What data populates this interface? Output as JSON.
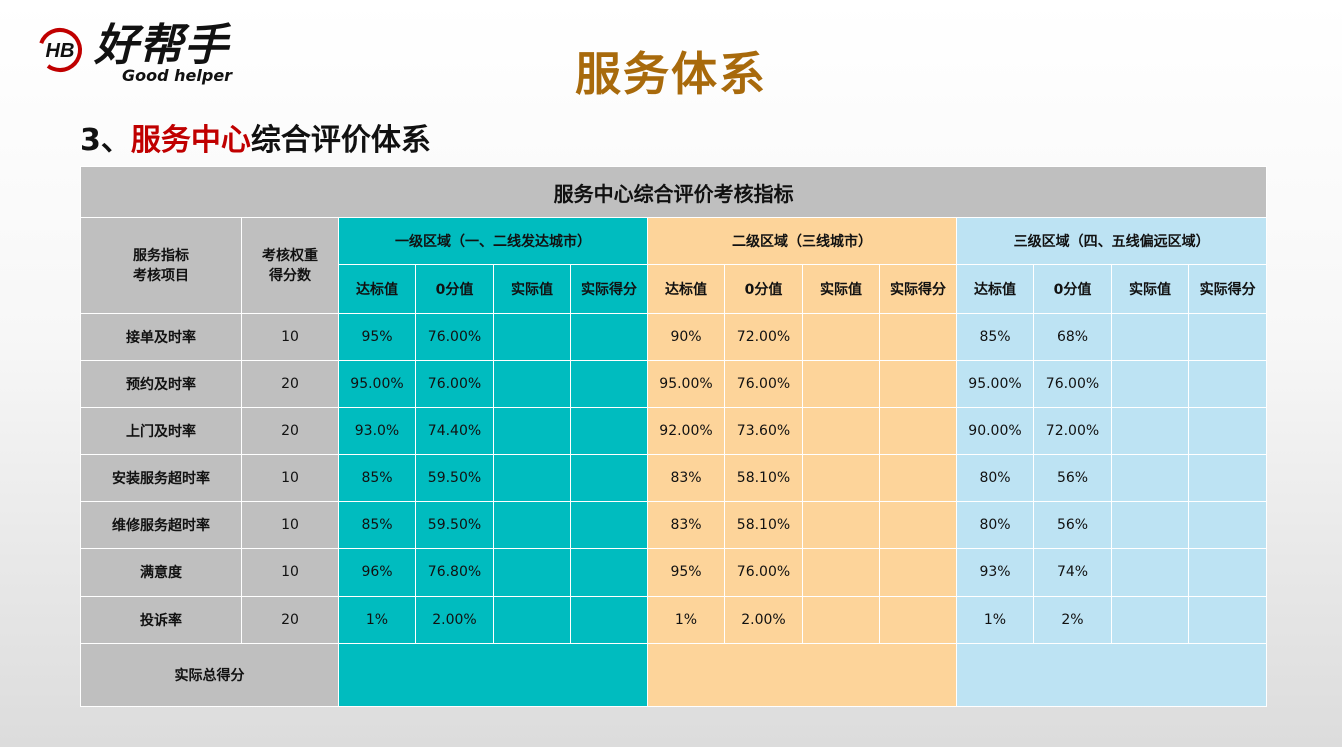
{
  "logo": {
    "mark": "HB",
    "name_cn": "好帮手",
    "name_en": "Good helper"
  },
  "page": {
    "title": "服务体系",
    "subtitle_prefix": "3、",
    "subtitle_red": "服务中心",
    "subtitle_rest": "综合评价体系"
  },
  "table": {
    "caption": "服务中心综合评价考核指标",
    "col_item": "服务指标\n考核项目",
    "col_weight": "考核权重\n得分数",
    "regions": [
      {
        "name": "一级区域（一、二线发达城市）",
        "color": "#00bcbf"
      },
      {
        "name": "二级区域（三线城市）",
        "color": "#fdd49a"
      },
      {
        "name": "三级区域（四、五线偏远区域）",
        "color": "#bde3f3"
      }
    ],
    "sub_headers": [
      "达标值",
      "0分值",
      "实际值",
      "实际得分"
    ],
    "rows": [
      {
        "item": "接单及时率",
        "weight": "10",
        "r1": [
          "95%",
          "76.00%",
          "",
          ""
        ],
        "r2": [
          "90%",
          "72.00%",
          "",
          ""
        ],
        "r3": [
          "85%",
          "68%",
          "",
          ""
        ]
      },
      {
        "item": "预约及时率",
        "weight": "20",
        "r1": [
          "95.00%",
          "76.00%",
          "",
          ""
        ],
        "r2": [
          "95.00%",
          "76.00%",
          "",
          ""
        ],
        "r3": [
          "95.00%",
          "76.00%",
          "",
          ""
        ]
      },
      {
        "item": "上门及时率",
        "weight": "20",
        "r1": [
          "93.0%",
          "74.40%",
          "",
          ""
        ],
        "r2": [
          "92.00%",
          "73.60%",
          "",
          ""
        ],
        "r3": [
          "90.00%",
          "72.00%",
          "",
          ""
        ]
      },
      {
        "item": "安装服务超时率",
        "weight": "10",
        "r1": [
          "85%",
          "59.50%",
          "",
          ""
        ],
        "r2": [
          "83%",
          "58.10%",
          "",
          ""
        ],
        "r3": [
          "80%",
          "56%",
          "",
          ""
        ]
      },
      {
        "item": "维修服务超时率",
        "weight": "10",
        "r1": [
          "85%",
          "59.50%",
          "",
          ""
        ],
        "r2": [
          "83%",
          "58.10%",
          "",
          ""
        ],
        "r3": [
          "80%",
          "56%",
          "",
          ""
        ]
      },
      {
        "item": "满意度",
        "weight": "10",
        "r1": [
          "96%",
          "76.80%",
          "",
          ""
        ],
        "r2": [
          "95%",
          "76.00%",
          "",
          ""
        ],
        "r3": [
          "93%",
          "74%",
          "",
          ""
        ]
      },
      {
        "item": "投诉率",
        "weight": "20",
        "r1": [
          "1%",
          "2.00%",
          "",
          ""
        ],
        "r2": [
          "1%",
          "2.00%",
          "",
          ""
        ],
        "r3": [
          "1%",
          "2%",
          "",
          ""
        ]
      }
    ],
    "total_label": "实际总得分",
    "totals": [
      "",
      "",
      ""
    ]
  }
}
